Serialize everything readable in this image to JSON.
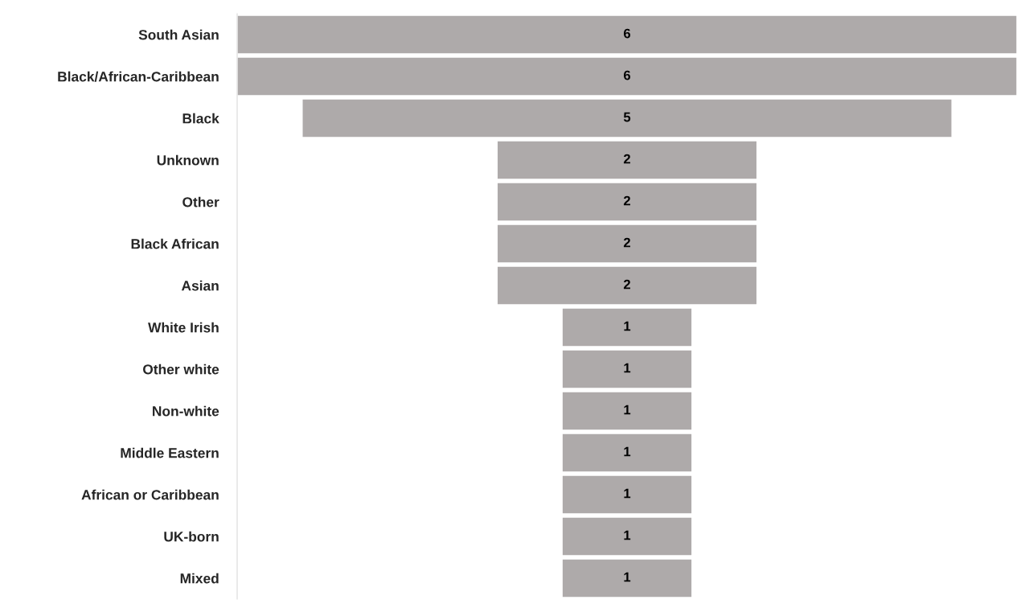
{
  "chart_data": {
    "type": "other",
    "categories": [
      "South Asian",
      "Black/African-Caribbean",
      "Black",
      "Unknown",
      "Other",
      "Black African",
      "Asian",
      "White Irish",
      "Other white",
      "Non-white",
      "Middle Eastern",
      "African or Caribbean",
      "UK-born",
      "Mixed"
    ],
    "values": [
      6,
      6,
      5,
      2,
      2,
      2,
      2,
      1,
      1,
      1,
      1,
      1,
      1,
      1
    ],
    "color": "#aeaaaa",
    "data_labels": true
  }
}
